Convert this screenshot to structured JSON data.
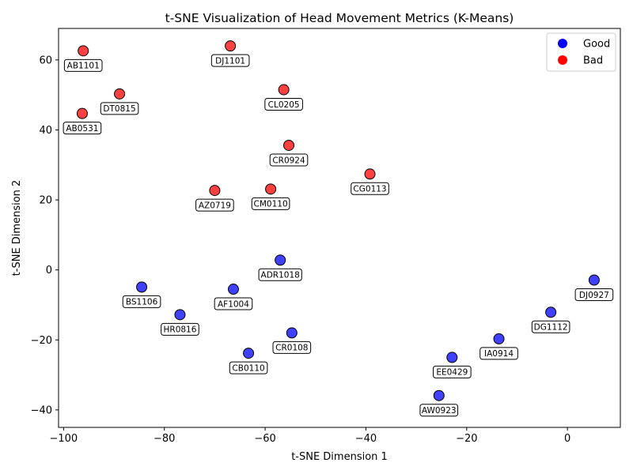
{
  "chart_data": {
    "type": "scatter",
    "title": "t-SNE Visualization of Head Movement Metrics (K-Means)",
    "xlabel": "t-SNE Dimension 1",
    "ylabel": "t-SNE Dimension 2",
    "xlim": [
      -101,
      10.5
    ],
    "ylim": [
      -45,
      69
    ],
    "xticks": [
      -100,
      -80,
      -60,
      -40,
      -20,
      0
    ],
    "yticks": [
      -40,
      -20,
      0,
      20,
      40,
      60
    ],
    "grid": false,
    "legend_position": "top-right",
    "colors": {
      "Good": "#0000ff",
      "Bad": "#ff0000"
    },
    "series": [
      {
        "name": "Good",
        "points": [
          {
            "label": "ADR1018",
            "x": -57.0,
            "y": 2.8
          },
          {
            "label": "BS1106",
            "x": -84.5,
            "y": -4.9
          },
          {
            "label": "AF1004",
            "x": -66.3,
            "y": -5.5
          },
          {
            "label": "HR0816",
            "x": -76.9,
            "y": -12.8
          },
          {
            "label": "CR0108",
            "x": -54.7,
            "y": -18.0
          },
          {
            "label": "CB0110",
            "x": -63.3,
            "y": -23.8
          },
          {
            "label": "DJ0927",
            "x": 5.3,
            "y": -2.9
          },
          {
            "label": "DG1112",
            "x": -3.3,
            "y": -12.1
          },
          {
            "label": "IA0914",
            "x": -13.6,
            "y": -19.7
          },
          {
            "label": "EE0429",
            "x": -22.9,
            "y": -25.0
          },
          {
            "label": "AW0923",
            "x": -25.5,
            "y": -35.9
          }
        ]
      },
      {
        "name": "Bad",
        "points": [
          {
            "label": "AB1101",
            "x": -96.1,
            "y": 62.6
          },
          {
            "label": "DJ1101",
            "x": -66.9,
            "y": 64.0
          },
          {
            "label": "DT0815",
            "x": -88.9,
            "y": 50.3
          },
          {
            "label": "CL0205",
            "x": -56.3,
            "y": 51.5
          },
          {
            "label": "AB0531",
            "x": -96.3,
            "y": 44.7
          },
          {
            "label": "CR0924",
            "x": -55.3,
            "y": 35.6
          },
          {
            "label": "CG0113",
            "x": -39.2,
            "y": 27.4
          },
          {
            "label": "AZ0719",
            "x": -70.0,
            "y": 22.7
          },
          {
            "label": "CM0110",
            "x": -58.9,
            "y": 23.1
          }
        ]
      }
    ]
  }
}
